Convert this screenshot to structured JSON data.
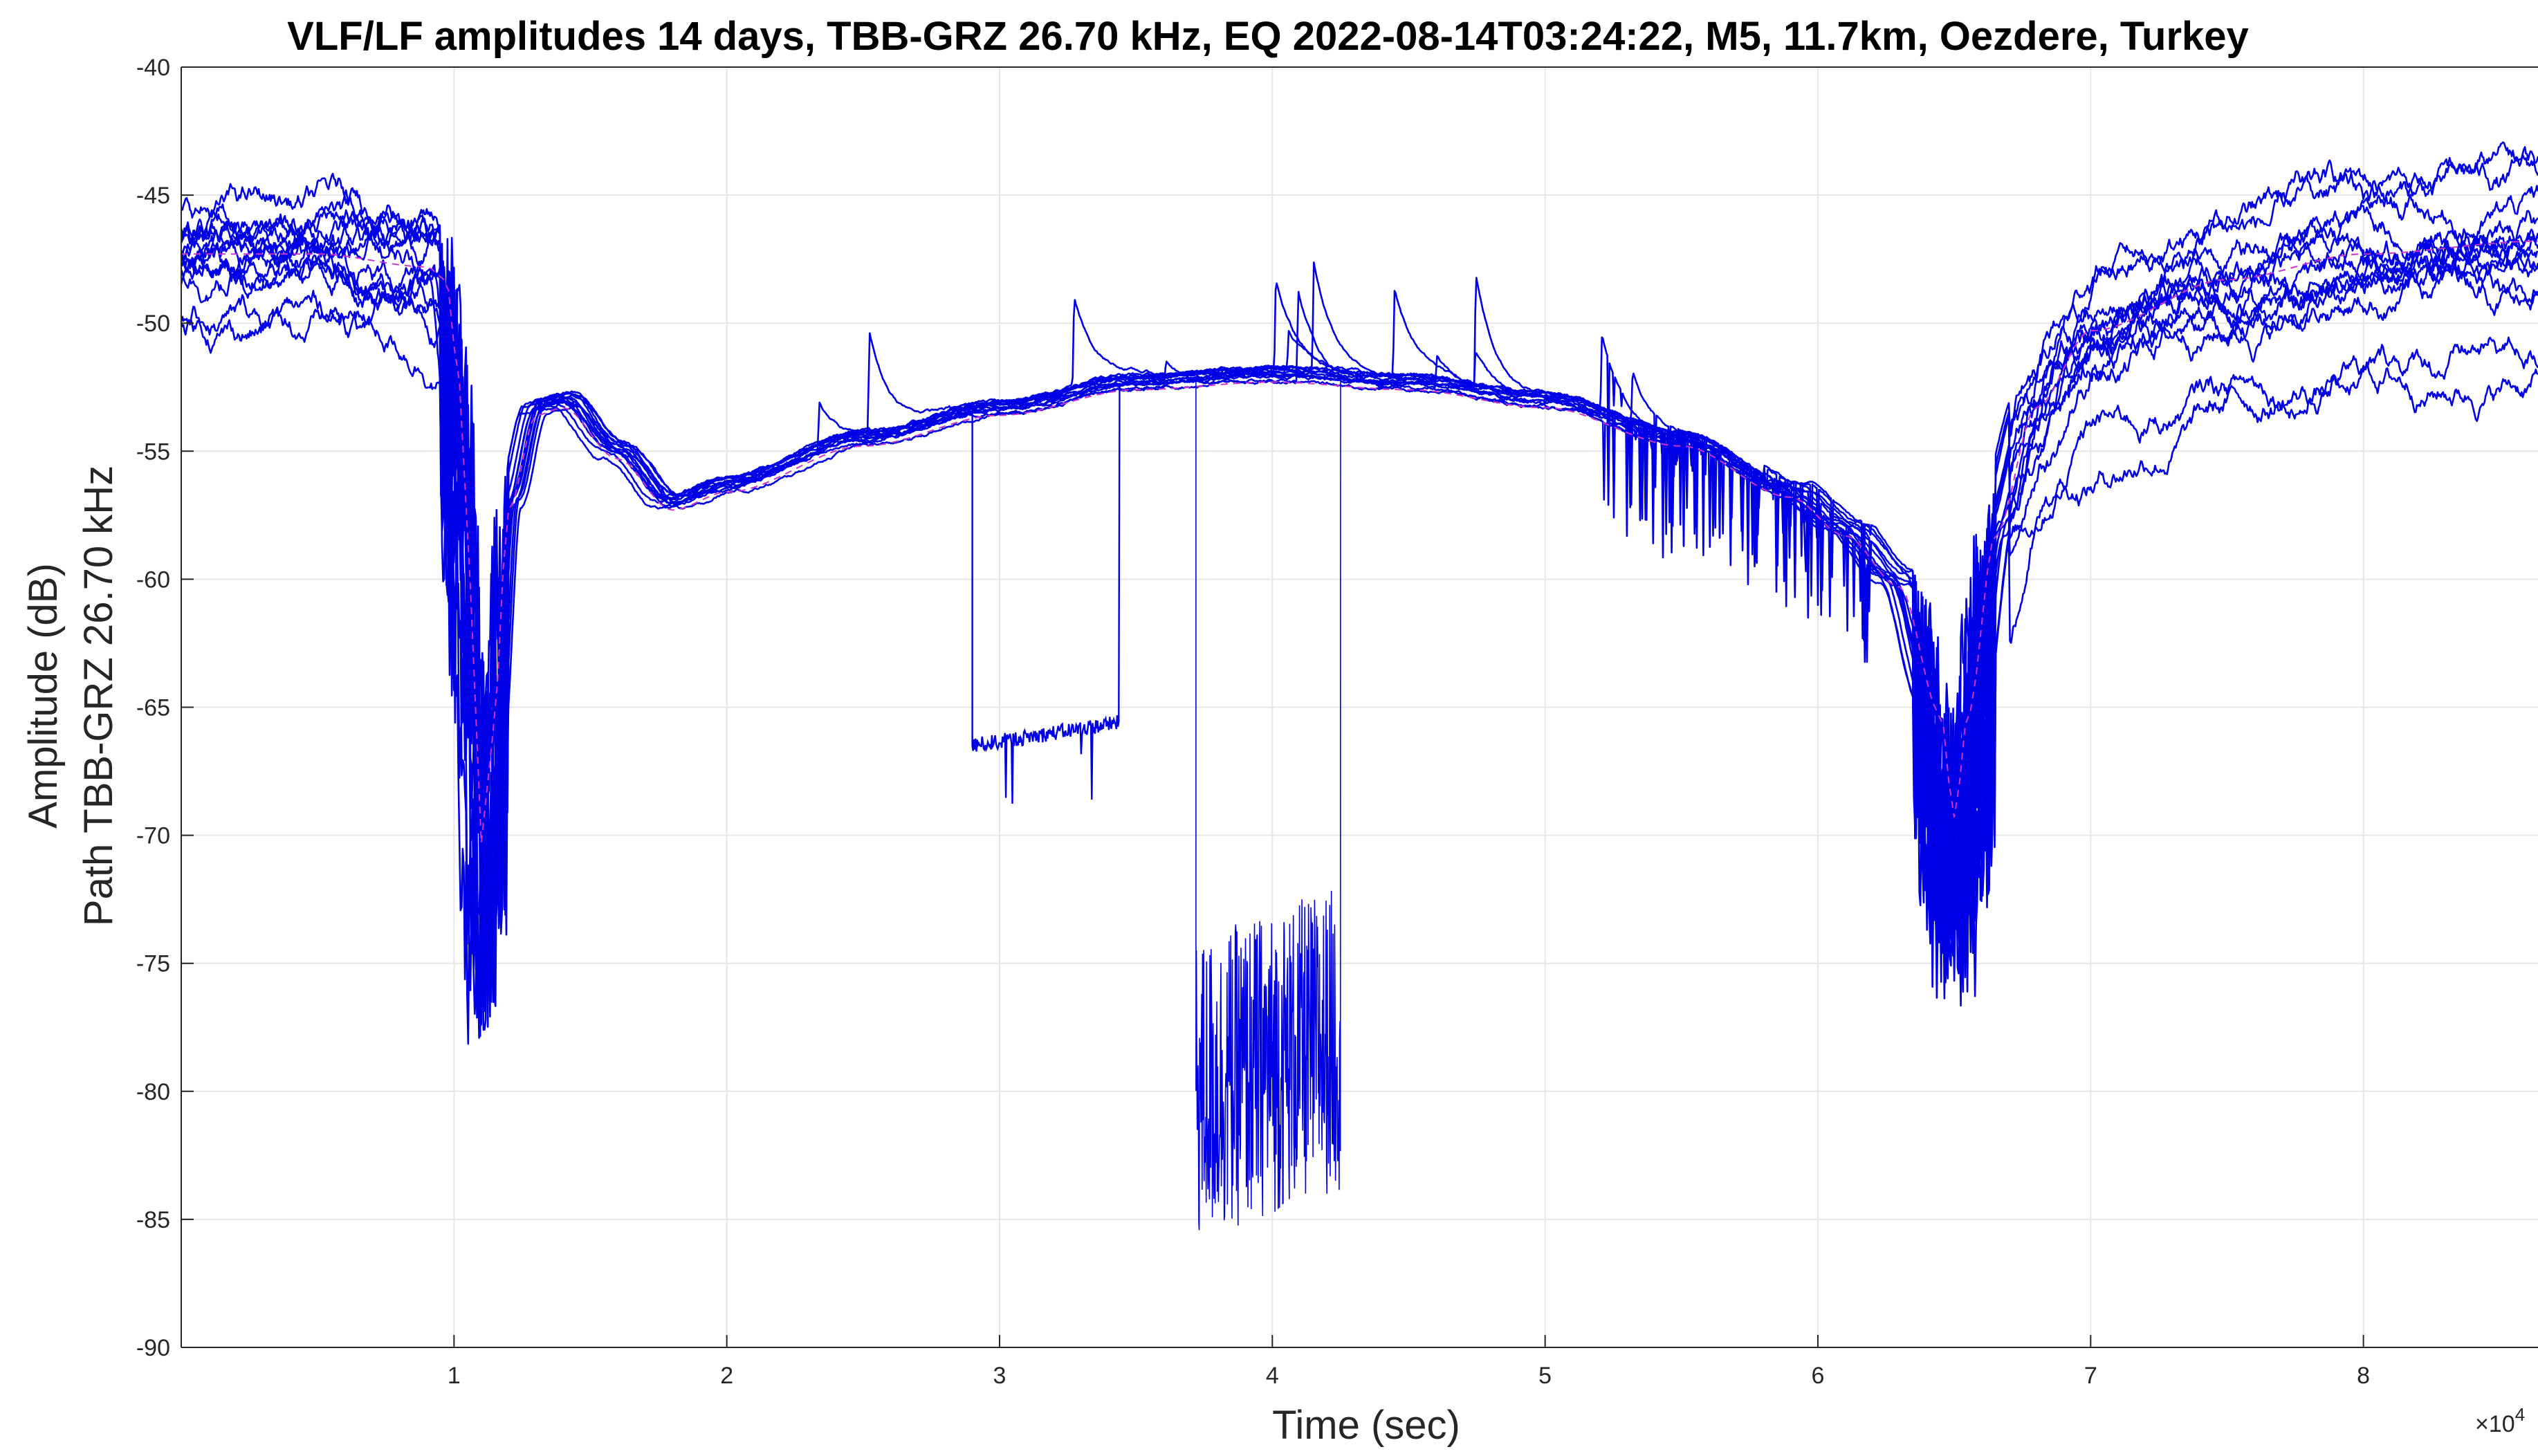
{
  "chart_data": {
    "type": "line",
    "title": "VLF/LF amplitudes 14 days, TBB-GRZ 26.70 kHz, EQ 2022-08-14T03:24:22, M5, 11.7km, Oezdere, Turkey",
    "xlabel": "Time (sec)",
    "ylabel_line1": "Amplitude (dB)",
    "ylabel_line2": "Path TBB-GRZ 26.70 kHz",
    "x_multiplier_label": "×10",
    "x_multiplier_exponent": "4",
    "xlim": [
      0,
      8.64
    ],
    "ylim": [
      -90,
      -40
    ],
    "x_scale_note": "x values in units of 10^4 sec",
    "x_ticks": [
      1,
      2,
      3,
      4,
      5,
      6,
      7,
      8
    ],
    "x_tick_labels": [
      "1",
      "2",
      "3",
      "4",
      "5",
      "6",
      "7",
      "8"
    ],
    "y_ticks": [
      -90,
      -85,
      -80,
      -75,
      -70,
      -65,
      -60,
      -55,
      -50,
      -45,
      -40
    ],
    "y_tick_labels": [
      "-90",
      "-85",
      "-80",
      "-75",
      "-70",
      "-65",
      "-60",
      "-55",
      "-50",
      "-45",
      "-40"
    ],
    "grid": true,
    "series_color": "#0000e6",
    "mean_color": "#cc33cc",
    "base_curve": {
      "x": [
        0,
        0.5,
        0.9,
        0.97,
        1.02,
        1.06,
        1.1,
        1.14,
        1.2,
        1.3,
        1.4,
        1.6,
        1.8,
        2.0,
        2.5,
        3.0,
        3.5,
        4.0,
        4.5,
        5.0,
        5.5,
        5.9,
        6.1,
        6.3,
        6.45,
        6.5,
        6.55,
        6.65,
        6.8,
        7.0,
        7.5,
        8.0,
        8.64
      ],
      "y": [
        -47,
        -47,
        -47.5,
        -48,
        -52,
        -60,
        -70,
        -66,
        -57,
        -53.3,
        -53,
        -55,
        -57,
        -56.3,
        -54.5,
        -53.3,
        -52.3,
        -52,
        -52.3,
        -53,
        -54.5,
        -56.5,
        -58,
        -60,
        -65,
        -69,
        -65,
        -58,
        -53,
        -50,
        -48,
        -47,
        -46.5
      ]
    },
    "num_days": 14,
    "dropouts": [
      {
        "x_start": 2.9,
        "x_end": 3.44,
        "y_start": -66.5,
        "y_end": -65.6
      },
      {
        "x_start": 3.72,
        "x_end": 4.25,
        "y_min": -87,
        "y_max": -70
      }
    ],
    "annotations": []
  }
}
